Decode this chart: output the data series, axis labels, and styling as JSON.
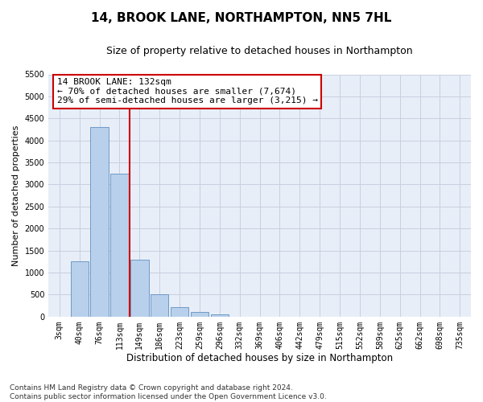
{
  "title": "14, BROOK LANE, NORTHAMPTON, NN5 7HL",
  "subtitle": "Size of property relative to detached houses in Northampton",
  "xlabel": "Distribution of detached houses by size in Northampton",
  "ylabel": "Number of detached properties",
  "categories": [
    "3sqm",
    "40sqm",
    "76sqm",
    "113sqm",
    "149sqm",
    "186sqm",
    "223sqm",
    "259sqm",
    "296sqm",
    "332sqm",
    "369sqm",
    "406sqm",
    "442sqm",
    "479sqm",
    "515sqm",
    "552sqm",
    "589sqm",
    "625sqm",
    "662sqm",
    "698sqm",
    "735sqm"
  ],
  "values": [
    0,
    1250,
    4300,
    3250,
    1300,
    500,
    220,
    100,
    60,
    0,
    0,
    0,
    0,
    0,
    0,
    0,
    0,
    0,
    0,
    0,
    0
  ],
  "bar_color": "#b8d0eb",
  "bar_edge_color": "#6090c0",
  "vline_color": "#cc0000",
  "vline_position": 3.5,
  "annotation_line1": "14 BROOK LANE: 132sqm",
  "annotation_line2": "← 70% of detached houses are smaller (7,674)",
  "annotation_line3": "29% of semi-detached houses are larger (3,215) →",
  "annotation_box_facecolor": "#ffffff",
  "annotation_box_edgecolor": "#cc0000",
  "ylim_max": 5500,
  "yticks": [
    0,
    500,
    1000,
    1500,
    2000,
    2500,
    3000,
    3500,
    4000,
    4500,
    5000,
    5500
  ],
  "grid_color": "#c8d0e0",
  "axes_facecolor": "#e8eef8",
  "footer_line1": "Contains HM Land Registry data © Crown copyright and database right 2024.",
  "footer_line2": "Contains public sector information licensed under the Open Government Licence v3.0.",
  "title_fontsize": 11,
  "subtitle_fontsize": 9,
  "xlabel_fontsize": 8.5,
  "ylabel_fontsize": 8,
  "tick_fontsize": 7,
  "annotation_fontsize": 8,
  "footer_fontsize": 6.5
}
